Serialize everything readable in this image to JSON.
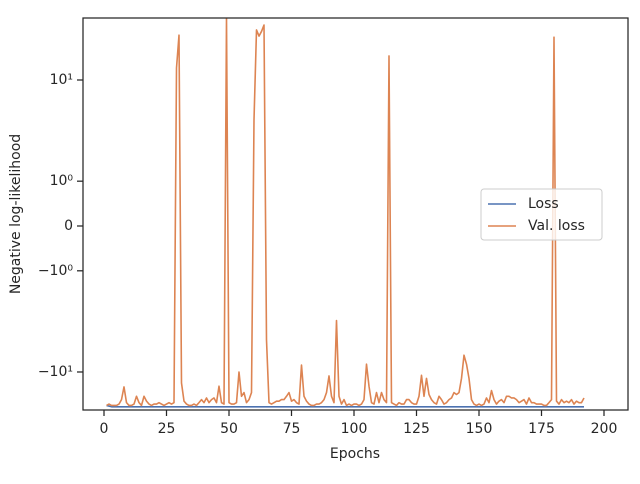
{
  "chart_data": {
    "type": "line",
    "xlabel": "Epochs",
    "ylabel": "Negative log-likelihood",
    "yscale": "symlog",
    "linthresh": 2,
    "xlim": [
      -8.4,
      209.6
    ],
    "xticks": [
      0,
      25,
      50,
      75,
      100,
      125,
      150,
      175,
      200
    ],
    "ylim": [
      -29.6,
      58.7
    ],
    "yticks": [
      {
        "value": -10,
        "label": "−10¹"
      },
      {
        "value": -1,
        "label": "−10⁰"
      },
      0,
      {
        "value": 1,
        "label": "10⁰"
      },
      {
        "value": 10,
        "label": "10¹"
      }
    ],
    "legend": "center right",
    "x": [
      1,
      2,
      3,
      4,
      5,
      6,
      7,
      8,
      9,
      10,
      11,
      12,
      13,
      14,
      15,
      16,
      17,
      18,
      19,
      20,
      21,
      22,
      23,
      24,
      25,
      26,
      27,
      28,
      29,
      30,
      31,
      32,
      33,
      34,
      35,
      36,
      37,
      38,
      39,
      40,
      41,
      42,
      43,
      44,
      45,
      46,
      47,
      48,
      49,
      50,
      51,
      52,
      53,
      54,
      55,
      56,
      57,
      58,
      59,
      60,
      61,
      62,
      63,
      64,
      65,
      66,
      67,
      68,
      69,
      70,
      71,
      72,
      73,
      74,
      75,
      76,
      77,
      78,
      79,
      80,
      81,
      82,
      83,
      84,
      85,
      86,
      87,
      88,
      89,
      90,
      91,
      92,
      93,
      94,
      95,
      96,
      97,
      98,
      99,
      100,
      101,
      102,
      103,
      104,
      105,
      106,
      107,
      108,
      109,
      110,
      111,
      112,
      113,
      114,
      115,
      116,
      117,
      118,
      119,
      120,
      121,
      122,
      123,
      124,
      125,
      126,
      127,
      128,
      129,
      130,
      131,
      132,
      133,
      134,
      135,
      136,
      137,
      138,
      139,
      140,
      141,
      142,
      143,
      144,
      145,
      146,
      147,
      148,
      149,
      150,
      151,
      152,
      153,
      154,
      155,
      156,
      157,
      158,
      159,
      160,
      161,
      162,
      163,
      164,
      165,
      166,
      167,
      168,
      169,
      170,
      171,
      172,
      173,
      174,
      175,
      176,
      177,
      178,
      179,
      180,
      181,
      182,
      183,
      184,
      185,
      186,
      187,
      188,
      189,
      190,
      191,
      192
    ],
    "series": [
      {
        "name": "Loss",
        "color": "#4c72b0",
        "values": [
          -26,
          -26.5,
          -27,
          -27,
          -27,
          -27,
          -27,
          -27,
          -27,
          -27,
          -27,
          -27,
          -27,
          -27,
          -27,
          -27,
          -27,
          -27,
          -27,
          -27,
          -27,
          -27,
          -27,
          -27,
          -27,
          -27,
          -27,
          -27,
          -27,
          -27,
          -27,
          -27,
          -27,
          -27,
          -27,
          -27,
          -27,
          -27,
          -27,
          -27,
          -27,
          -27,
          -27,
          -27,
          -27,
          -27,
          -27,
          -27,
          -27,
          -27,
          -27,
          -27,
          -27,
          -27,
          -27,
          -27,
          -27,
          -27,
          -27,
          -27,
          -27,
          -27,
          -27,
          -27,
          -27,
          -27,
          -27,
          -27,
          -27,
          -27,
          -27,
          -27,
          -27,
          -27,
          -27,
          -27,
          -27,
          -27,
          -27,
          -27,
          -27,
          -27,
          -27,
          -27,
          -27,
          -27,
          -27,
          -27,
          -27,
          -27,
          -27,
          -27,
          -27,
          -27,
          -27,
          -27,
          -27,
          -27,
          -27,
          -27,
          -27,
          -27,
          -27,
          -27,
          -27,
          -27,
          -27,
          -27,
          -27,
          -27,
          -27,
          -27,
          -27,
          -27,
          -27,
          -27,
          -27,
          -27,
          -27,
          -27,
          -27,
          -27,
          -27,
          -27,
          -27,
          -27,
          -27,
          -27,
          -27,
          -27,
          -27,
          -27,
          -27,
          -27,
          -27,
          -27,
          -27,
          -27,
          -27,
          -27,
          -27,
          -27,
          -27,
          -27,
          -27,
          -27,
          -27,
          -27,
          -27,
          -27,
          -27,
          -27,
          -27,
          -27,
          -27,
          -27,
          -27,
          -27,
          -27,
          -27,
          -27,
          -27,
          -27,
          -27,
          -27,
          -27,
          -27,
          -27,
          -27,
          -27,
          -27,
          -27,
          -27,
          -27,
          -27,
          -27,
          -27,
          -27,
          -27,
          -27,
          -27,
          -27,
          -27,
          -27,
          -27,
          -27,
          -27,
          -27,
          -27,
          -27,
          -27,
          -27
        ]
      },
      {
        "name": "Val. loss",
        "color": "#dd8452",
        "values": [
          -26,
          -25,
          -26,
          -26,
          -26,
          -25,
          -22,
          -15.3,
          -24,
          -26,
          -26,
          -25,
          -20,
          -24,
          -26,
          -20,
          -23,
          -25,
          -26,
          -25,
          -25,
          -24,
          -25,
          -26,
          -25,
          -24,
          -25,
          -24,
          14.1,
          36,
          -13.7,
          -23,
          -25,
          -26,
          -26,
          -25,
          -26,
          -24,
          -22,
          -24,
          -21,
          -24,
          -22,
          -21,
          -24,
          -15,
          -24,
          -25,
          60,
          -24,
          -25,
          -25,
          -24,
          -10,
          -20,
          -18,
          -24,
          -22,
          -18,
          3.2,
          41.8,
          35,
          40,
          48,
          -4,
          -24,
          -25,
          -24,
          -23,
          -23,
          -22,
          -22,
          -20,
          -18,
          -23,
          -22,
          -24,
          -25,
          -8.2,
          -20,
          -23,
          -25,
          -26,
          -26,
          -25,
          -25,
          -24,
          -22,
          -18,
          -11.2,
          -20,
          -24,
          -2.3,
          -20,
          -25,
          -22,
          -26,
          -25,
          -26,
          -25,
          -25,
          -26,
          -25,
          -22,
          -8,
          -15,
          -24,
          -25,
          -18,
          -24,
          -18,
          -22,
          -24,
          19.9,
          -24,
          -25,
          -26,
          -24,
          -25,
          -25,
          -22,
          -22,
          -24,
          -25,
          -25,
          -20,
          -11,
          -20,
          -12,
          -19,
          -22,
          -24,
          -25,
          -20,
          -22,
          -25,
          -24,
          -22,
          -21,
          -18,
          -19,
          -18,
          -12,
          -6.2,
          -8,
          -12,
          -22,
          -25,
          -26,
          -25,
          -26,
          -25,
          -21,
          -24,
          -17,
          -22,
          -25,
          -23,
          -22,
          -24,
          -20,
          -20,
          -21,
          -21,
          -22,
          -24,
          -23,
          -22,
          -25,
          -21,
          -24,
          -24,
          -25,
          -25,
          -25,
          -26,
          -26,
          -24,
          -22,
          34,
          -23,
          -25,
          -22,
          -24,
          -23,
          -24,
          -22,
          -25,
          -23,
          -24,
          -24,
          -21
        ]
      }
    ]
  }
}
